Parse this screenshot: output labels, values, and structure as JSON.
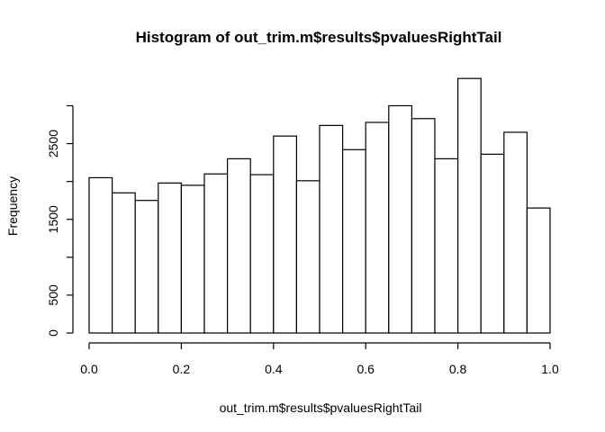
{
  "chart_data": {
    "type": "bar",
    "title": "Histogram of out_trim.m$results$pvaluesRightTail",
    "xlabel": "out_trim.m$results$pvaluesRightTail",
    "ylabel": "Frequency",
    "bins": [
      {
        "start": 0.0,
        "end": 0.05,
        "count": 2050
      },
      {
        "start": 0.05,
        "end": 0.1,
        "count": 1850
      },
      {
        "start": 0.1,
        "end": 0.15,
        "count": 1750
      },
      {
        "start": 0.15,
        "end": 0.2,
        "count": 1980
      },
      {
        "start": 0.2,
        "end": 0.25,
        "count": 1950
      },
      {
        "start": 0.25,
        "end": 0.3,
        "count": 2100
      },
      {
        "start": 0.3,
        "end": 0.35,
        "count": 2300
      },
      {
        "start": 0.35,
        "end": 0.4,
        "count": 2090
      },
      {
        "start": 0.4,
        "end": 0.45,
        "count": 2600
      },
      {
        "start": 0.45,
        "end": 0.5,
        "count": 2010
      },
      {
        "start": 0.5,
        "end": 0.55,
        "count": 2740
      },
      {
        "start": 0.55,
        "end": 0.6,
        "count": 2420
      },
      {
        "start": 0.6,
        "end": 0.65,
        "count": 2780
      },
      {
        "start": 0.65,
        "end": 0.7,
        "count": 3000
      },
      {
        "start": 0.7,
        "end": 0.75,
        "count": 2830
      },
      {
        "start": 0.75,
        "end": 0.8,
        "count": 2300
      },
      {
        "start": 0.8,
        "end": 0.85,
        "count": 3360
      },
      {
        "start": 0.85,
        "end": 0.9,
        "count": 2360
      },
      {
        "start": 0.9,
        "end": 0.95,
        "count": 2650
      },
      {
        "start": 0.95,
        "end": 1.0,
        "count": 1650
      }
    ],
    "xlim": [
      0,
      1
    ],
    "ylim": [
      0,
      3500
    ],
    "xticks": [
      0.0,
      0.2,
      0.4,
      0.6,
      0.8,
      1.0
    ],
    "xtick_labels": [
      "0.0",
      "0.2",
      "0.4",
      "0.6",
      "0.8",
      "1.0"
    ],
    "yticks": [
      0,
      500,
      1500,
      2500
    ],
    "ytick_labels": [
      "0",
      "500",
      "1500",
      "2500"
    ],
    "ytick_marks": [
      0,
      500,
      1000,
      1500,
      2000,
      2500,
      3000
    ],
    "grid": false,
    "colors": {
      "bar_fill": "#ffffff",
      "bar_stroke": "#000000"
    }
  }
}
